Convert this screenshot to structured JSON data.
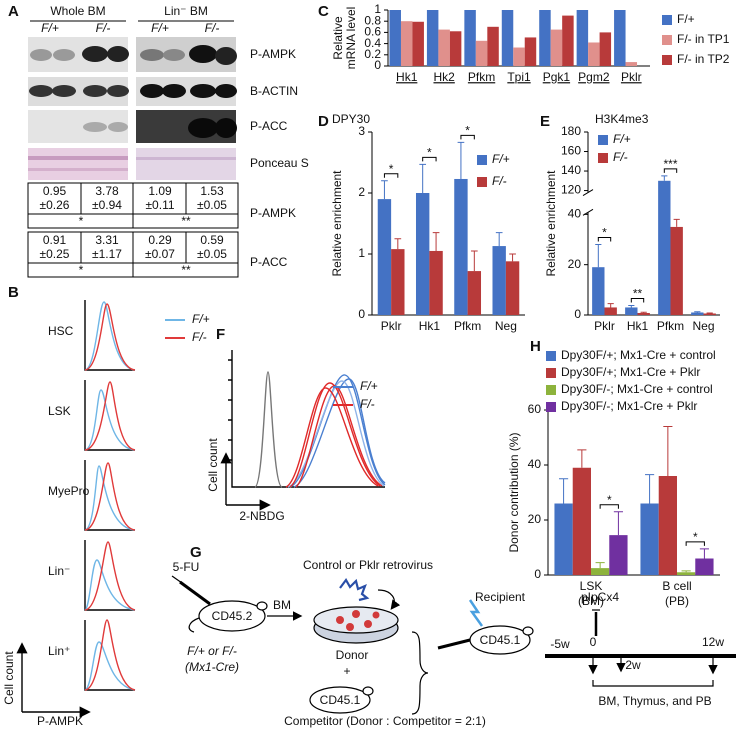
{
  "panel_labels": [
    "A",
    "B",
    "C",
    "D",
    "E",
    "F",
    "G",
    "H"
  ],
  "panel_a": {
    "groups": [
      "Whole BM",
      "Lin⁻ BM"
    ],
    "genotypes": [
      "F/+",
      "F/-",
      "F/+",
      "F/-"
    ],
    "blots": [
      "P-AMPK",
      "B-ACTIN",
      "P-ACC",
      "Ponceau S"
    ],
    "quantification": [
      {
        "label": "P-AMPK",
        "means": [
          0.95,
          3.78,
          1.09,
          1.53
        ],
        "sems": [
          "±0.26",
          "±0.94",
          "±0.11",
          "±0.05"
        ],
        "significance": [
          "*",
          "**"
        ]
      },
      {
        "label": "P-ACC",
        "means": [
          0.91,
          3.31,
          0.29,
          0.59
        ],
        "sems": [
          "±0.25",
          "±1.17",
          "±0.07",
          "±0.05"
        ],
        "significance": [
          "*",
          "**"
        ]
      }
    ]
  },
  "panel_b": {
    "populations": [
      "HSC",
      "LSK",
      "MyePro",
      "Lin⁻",
      "Lin⁺"
    ],
    "legend": [
      "F/+",
      "F/-"
    ],
    "ylabel": "Cell count",
    "xlabel": "P-AMPK"
  },
  "panel_f": {
    "legend": [
      "F/+",
      "F/-"
    ],
    "ylabel": "Cell count",
    "xlabel": "2-NBDG"
  },
  "panel_g": {
    "treatment": "5-FU",
    "donor_mouse": "CD45.2",
    "genotype": "F/+ or F/-",
    "driver": "(Mx1-Cre)",
    "harvest": "BM",
    "virus": "Control or Pklr retrovirus",
    "donor": "Donor",
    "plus": "+",
    "competitor_mouse": "CD45.1",
    "competitor": "Competitor (Donor : Competitor = 2:1)",
    "recipient": "Recipient",
    "recipient_mouse": "CD45.1",
    "induction": "pIpCx4",
    "timepoints": [
      "-5w",
      "0",
      "2w",
      "12w"
    ],
    "analysis": "BM, Thymus, and PB"
  },
  "chart_data": [
    {
      "type": "bar",
      "categories": [
        "Hk1",
        "Hk2",
        "Pfkm",
        "Tpi1",
        "Pgk1",
        "Pgm2",
        "Pklr"
      ],
      "ylabel": "Relative mRNA level",
      "ylim": [
        0,
        1
      ],
      "yticks": [
        0,
        0.2,
        0.4,
        0.6,
        0.8,
        1
      ],
      "legend": "outside right",
      "series": [
        {
          "name": "F/+",
          "color": "#4472c4",
          "values": [
            1,
            1,
            1,
            1,
            1,
            1,
            1
          ]
        },
        {
          "name": "F/- in TP1",
          "color": "#e0908c",
          "values": [
            0.8,
            0.65,
            0.45,
            0.33,
            0.65,
            0.42,
            0.07
          ]
        },
        {
          "name": "F/- in TP2",
          "color": "#b83a3a",
          "values": [
            0.79,
            0.62,
            0.7,
            0.51,
            0.9,
            0.6,
            null
          ]
        }
      ]
    },
    {
      "type": "bar",
      "title": "DPY30",
      "categories": [
        "Pklr",
        "Hk1",
        "Pfkm",
        "Neg"
      ],
      "ylabel": "Relative enrichment",
      "ylim": [
        0,
        3
      ],
      "yticks": [
        0,
        1,
        2,
        3
      ],
      "legend": "upper right",
      "series": [
        {
          "name": "F/+",
          "color": "#4472c4",
          "values": [
            1.9,
            2.0,
            2.23,
            1.13
          ],
          "errors": [
            0.3,
            0.47,
            0.6,
            0.22
          ]
        },
        {
          "name": "F/-",
          "color": "#b83a3a",
          "values": [
            1.08,
            1.05,
            0.72,
            0.88
          ],
          "errors": [
            0.17,
            0.3,
            0.33,
            0.12
          ],
          "significance": [
            "*",
            "*",
            "*",
            null
          ]
        }
      ]
    },
    {
      "type": "bar",
      "title": "H3K4me3",
      "categories": [
        "Pklr",
        "Hk1",
        "Pfkm",
        "Neg"
      ],
      "ylabel": "Relative enrichment",
      "ylim": [
        0,
        180
      ],
      "yticks": [
        0,
        20,
        40,
        120,
        140,
        160,
        180
      ],
      "axis_break": true,
      "legend": "upper left",
      "series": [
        {
          "name": "F/+",
          "color": "#4472c4",
          "values": [
            19,
            3,
            130,
            1
          ],
          "errors": [
            9,
            0.8,
            5,
            0.3
          ]
        },
        {
          "name": "F/-",
          "color": "#b83a3a",
          "values": [
            3,
            0.8,
            35,
            0.6
          ],
          "errors": [
            1.5,
            0.3,
            3,
            0.2
          ],
          "significance": [
            "*",
            "**",
            "***",
            null
          ]
        }
      ]
    },
    {
      "type": "bar",
      "categories": [
        "LSK",
        "B cell"
      ],
      "category_notes": [
        "(BM)",
        "(PB)"
      ],
      "ylabel": "Donor contribution (%)",
      "ylim": [
        0,
        60
      ],
      "yticks": [
        0,
        20,
        40,
        60
      ],
      "legend": "outside top",
      "series": [
        {
          "name": "Dpy30F/+; Mx1-Cre + control",
          "color": "#4472c4",
          "values": [
            26,
            26
          ],
          "errors": [
            9,
            10.5
          ]
        },
        {
          "name": "Dpy30F/+; Mx1-Cre + Pklr",
          "color": "#b83a3a",
          "values": [
            39,
            36
          ],
          "errors": [
            6.5,
            18
          ]
        },
        {
          "name": "Dpy30F/-; Mx1-Cre + control",
          "color": "#8db33c",
          "values": [
            2.5,
            1
          ],
          "errors": [
            2,
            0.5
          ]
        },
        {
          "name": "Dpy30F/-; Mx1-Cre + Pklr",
          "color": "#7030a0",
          "values": [
            14.5,
            6
          ],
          "errors": [
            8.5,
            3.5
          ],
          "significance": [
            "*",
            "*"
          ]
        }
      ]
    }
  ]
}
